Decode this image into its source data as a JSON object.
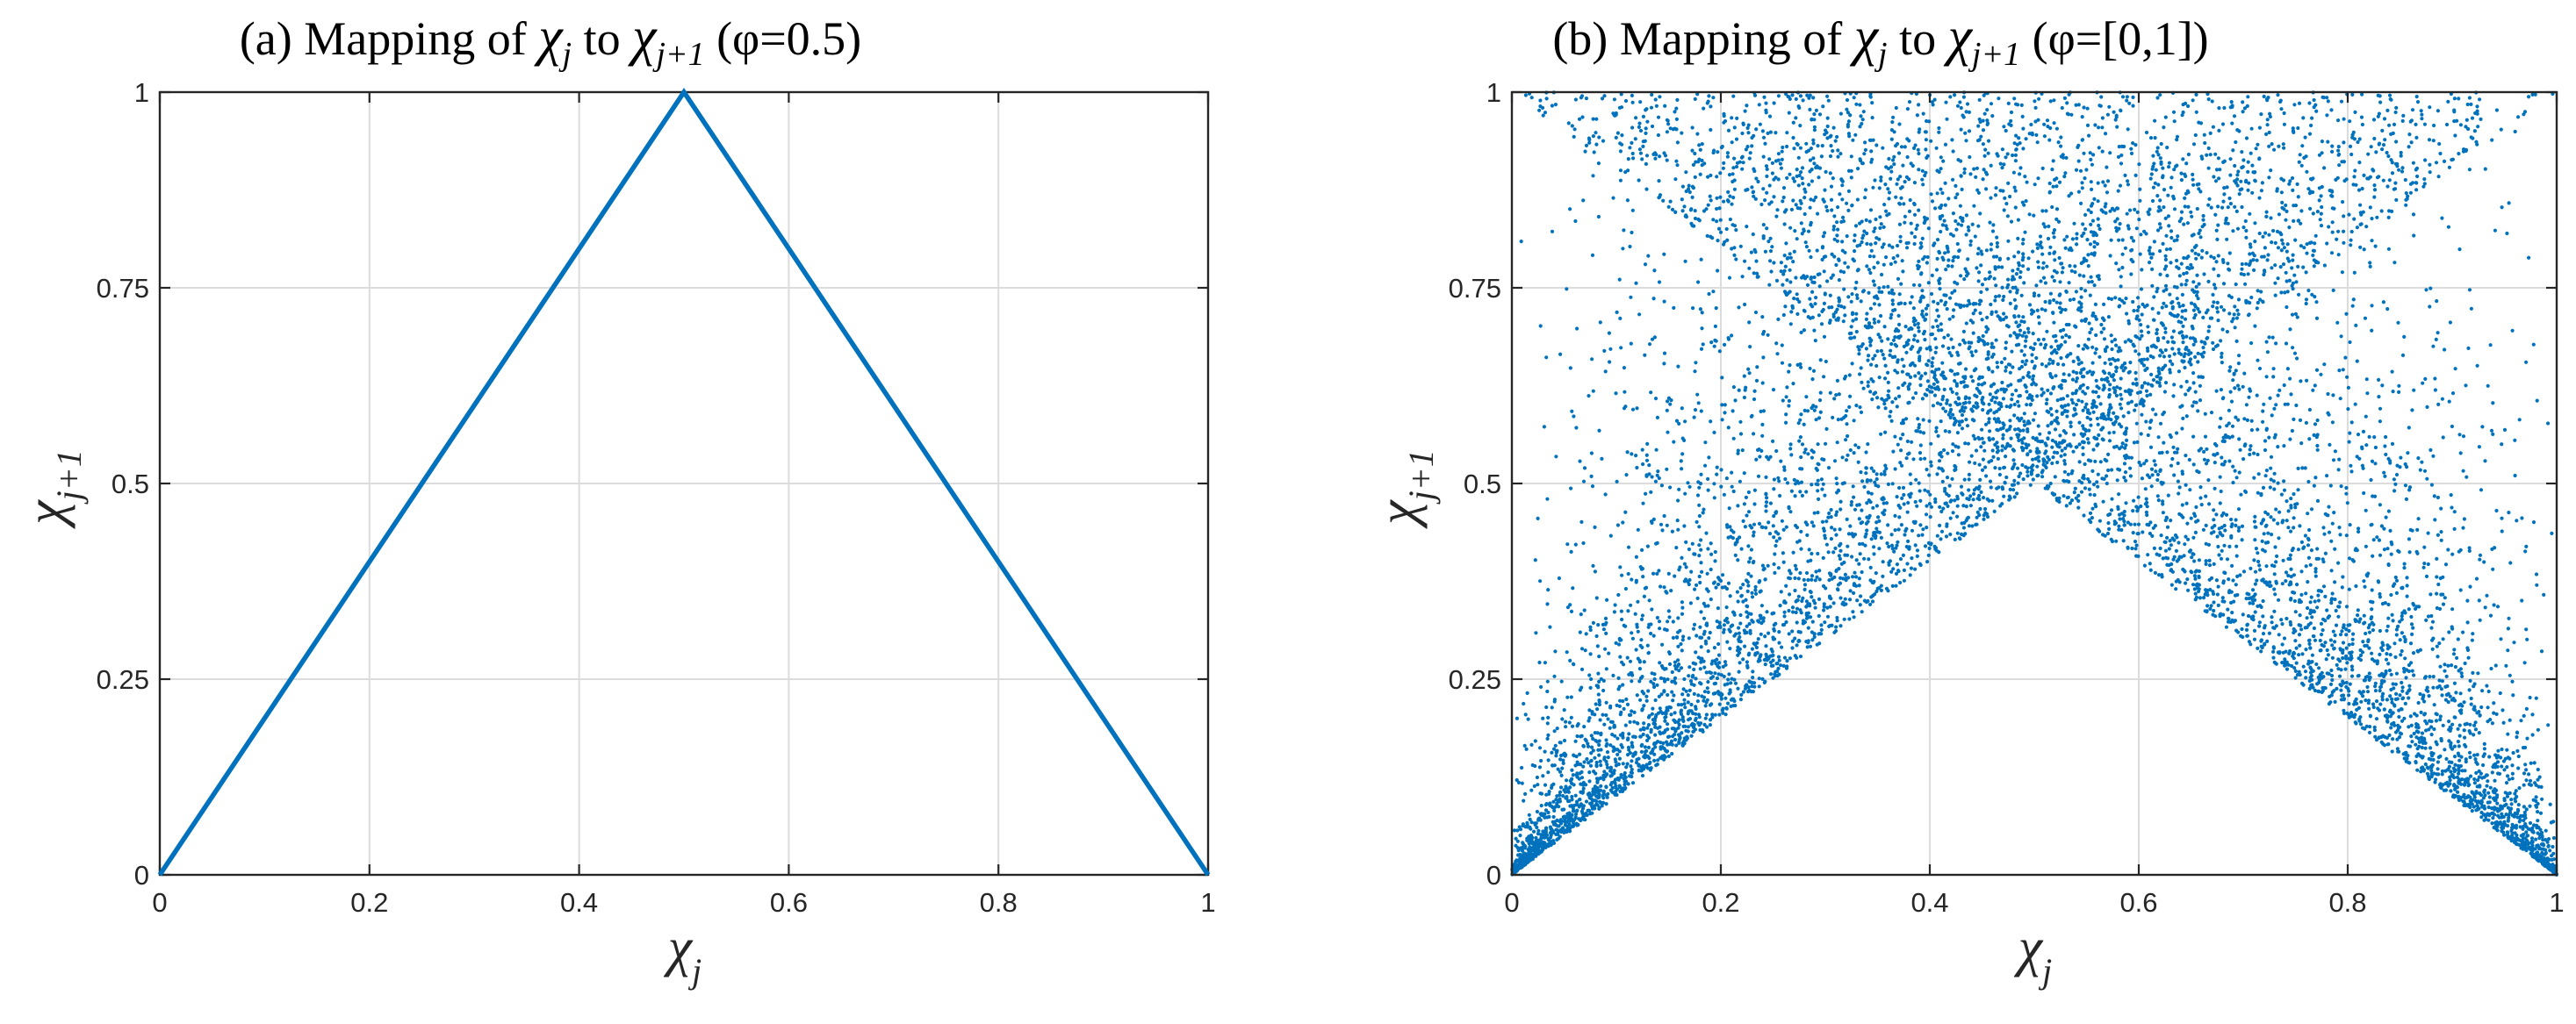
{
  "chart_data": [
    {
      "type": "line",
      "title": {
        "pre": "(a) Mapping of ",
        "sym1": "χ",
        "sub1": "j",
        "mid": " to ",
        "sym2": "χ",
        "sub2": "j+1",
        "post": " (φ=0.5)"
      },
      "xlabel": {
        "sym": "χ",
        "sub": "j"
      },
      "ylabel": {
        "sym": "χ",
        "sub": "j+1"
      },
      "xlim": [
        0,
        1
      ],
      "ylim": [
        0,
        1
      ],
      "xticks": [
        0,
        0.2,
        0.4,
        0.6,
        0.8,
        1
      ],
      "xticklabels": [
        "0",
        "0.2",
        "0.4",
        "0.6",
        "0.8",
        "1"
      ],
      "yticks": [
        0,
        0.25,
        0.5,
        0.75,
        1
      ],
      "yticklabels": [
        "0",
        "0.25",
        "0.5",
        "0.75",
        "1"
      ],
      "grid": true,
      "series": [
        {
          "color": "#0072BD",
          "x": [
            0,
            0.5,
            1
          ],
          "y": [
            0,
            1,
            0
          ]
        }
      ]
    },
    {
      "type": "scatter",
      "title": {
        "pre": "(b) Mapping of ",
        "sym1": "χ",
        "sub1": "j",
        "mid": " to ",
        "sym2": "χ",
        "sub2": "j+1",
        "post": " (φ=[0,1])"
      },
      "xlabel": {
        "sym": "χ",
        "sub": "j"
      },
      "ylabel": {
        "sym": "χ",
        "sub": "j+1"
      },
      "xlim": [
        0,
        1
      ],
      "ylim": [
        0,
        1
      ],
      "xticks": [
        0,
        0.2,
        0.4,
        0.6,
        0.8,
        1
      ],
      "xticklabels": [
        "0",
        "0.2",
        "0.4",
        "0.6",
        "0.8",
        "1"
      ],
      "yticks": [
        0,
        0.25,
        0.5,
        0.75,
        1
      ],
      "yticklabels": [
        "0",
        "0.25",
        "0.5",
        "0.75",
        "1"
      ],
      "grid": true,
      "series": [
        {
          "color": "#0072BD",
          "description_of_points": "x uniform in [0,1], y = skew tent map with random parameter phi in [0,1]: y = x/phi for x<phi, else (1-x)/(1-phi)",
          "point_count": 9000
        }
      ]
    }
  ]
}
